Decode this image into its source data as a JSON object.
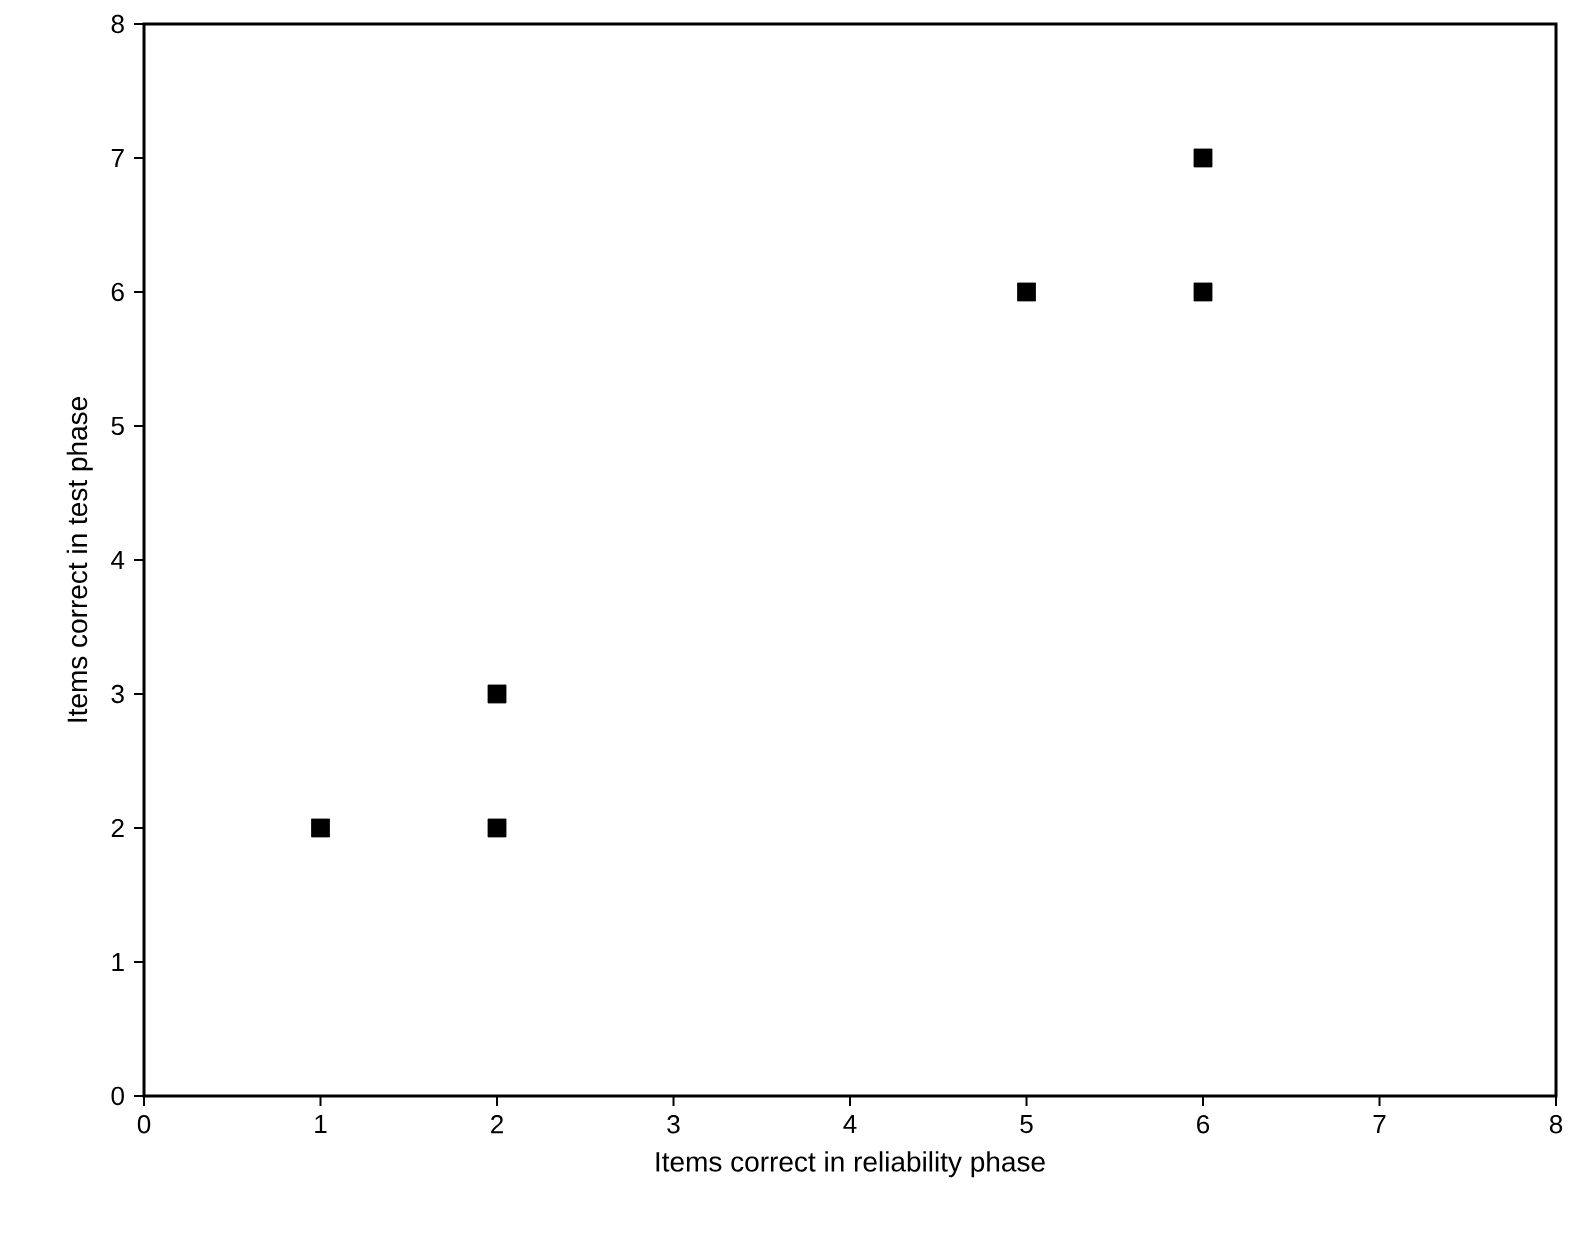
{
  "chart_data": {
    "type": "scatter",
    "xlabel": "Items correct in reliability phase",
    "ylabel": "Items correct in test phase",
    "x": [
      1,
      2,
      2,
      5,
      6,
      6
    ],
    "series": [
      {
        "color": "#000000",
        "values": [
          2,
          3,
          2,
          6,
          7,
          6
        ]
      }
    ],
    "xlim": [
      0,
      8
    ],
    "ylim": [
      0,
      8
    ],
    "xticks": [
      0,
      1,
      2,
      3,
      4,
      5,
      6,
      7,
      8
    ],
    "yticks": [
      0,
      1,
      2,
      3,
      4,
      5,
      6,
      7,
      8
    ],
    "grid": false,
    "marker": "square"
  }
}
